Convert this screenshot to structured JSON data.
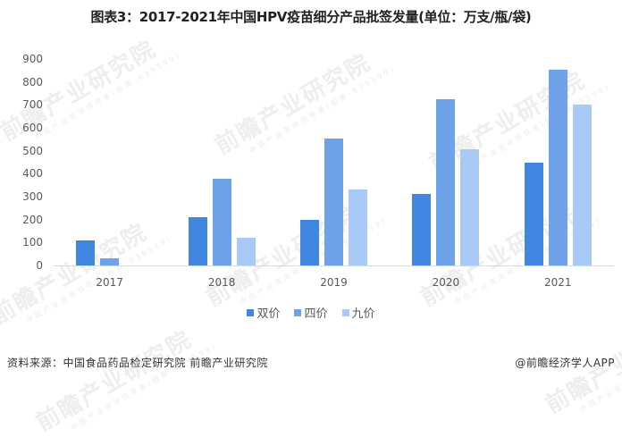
{
  "title": "图表3：2017-2021年中国HPV疫苗细分产品批签发量(单位：万支/瓶/袋)",
  "watermark": {
    "main": "前瞻产业研究院",
    "sub": "中国产业咨询领导者(股票:839599)"
  },
  "footer": {
    "source": "资料来源：中国食品药品检定研究院 前瞻产业研究院",
    "credit": "@前瞻经济学人APP"
  },
  "colors": {
    "bivalent": "#4186E0",
    "quadrivalent": "#6EA3EA",
    "nonavalent": "#A9CAF6"
  },
  "chart_data": {
    "type": "bar",
    "title": "图表3：2017-2021年中国HPV疫苗细分产品批签发量(单位：万支/瓶/袋)",
    "xlabel": "",
    "ylabel": "",
    "categories": [
      "2017",
      "2018",
      "2019",
      "2020",
      "2021"
    ],
    "series": [
      {
        "name": "双价",
        "values": [
          109,
          211,
          199,
          313,
          449
        ]
      },
      {
        "name": "四价",
        "values": [
          31,
          379,
          555,
          723,
          855
        ]
      },
      {
        "name": "九价",
        "values": [
          0,
          121,
          332,
          508,
          703
        ]
      }
    ],
    "yticks": [
      "0",
      "100",
      "200",
      "300",
      "400",
      "500",
      "600",
      "700",
      "800",
      "900"
    ],
    "ylim": [
      0,
      900
    ],
    "grid": false,
    "legend_position": "bottom"
  }
}
